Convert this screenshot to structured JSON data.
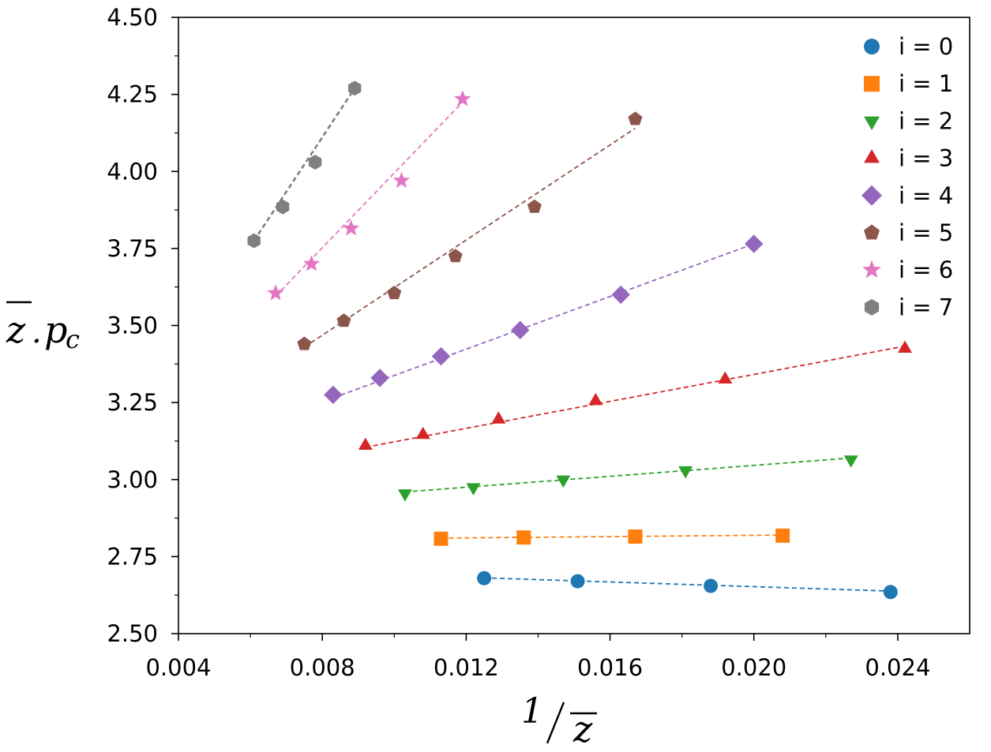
{
  "chart_data": {
    "type": "scatter",
    "title": "",
    "xlabel": "1/z̄",
    "ylabel": "z̄.p_c",
    "xlim": [
      0.004,
      0.026
    ],
    "ylim": [
      2.5,
      4.5
    ],
    "xticks": [
      0.004,
      0.008,
      0.012,
      0.016,
      0.02,
      0.024
    ],
    "xtick_labels": [
      "0.004",
      "0.008",
      "0.012",
      "0.016",
      "0.020",
      "0.024"
    ],
    "yticks": [
      2.5,
      2.75,
      3.0,
      3.25,
      3.5,
      3.75,
      4.0,
      4.25,
      4.5
    ],
    "ytick_labels": [
      "2.50",
      "2.75",
      "3.00",
      "3.25",
      "3.50",
      "3.75",
      "4.00",
      "4.25",
      "4.50"
    ],
    "grid": false,
    "legend_position": "top-right",
    "series": [
      {
        "name": "i = 0",
        "color": "#1f77b4",
        "marker": "circle",
        "x": [
          0.0125,
          0.0151,
          0.0188,
          0.0238
        ],
        "y": [
          2.68,
          2.67,
          2.655,
          2.635
        ],
        "fit": [
          [
            0.0125,
            2.681
          ],
          [
            0.0238,
            2.638
          ]
        ]
      },
      {
        "name": "i = 1",
        "color": "#ff7f0e",
        "marker": "square",
        "x": [
          0.0113,
          0.0136,
          0.0167,
          0.0208
        ],
        "y": [
          2.808,
          2.812,
          2.815,
          2.818
        ],
        "fit": [
          [
            0.0113,
            2.81
          ],
          [
            0.0208,
            2.82
          ]
        ]
      },
      {
        "name": "i = 2",
        "color": "#2ca02c",
        "marker": "triangle-down",
        "x": [
          0.0103,
          0.0122,
          0.0147,
          0.0181,
          0.0227
        ],
        "y": [
          2.955,
          2.975,
          3.0,
          3.03,
          3.065
        ],
        "fit": [
          [
            0.0103,
            2.96
          ],
          [
            0.0227,
            3.07
          ]
        ]
      },
      {
        "name": "i = 3",
        "color": "#d62728",
        "marker": "triangle-up",
        "x": [
          0.0092,
          0.0108,
          0.0129,
          0.0156,
          0.0192,
          0.0242
        ],
        "y": [
          3.11,
          3.145,
          3.195,
          3.255,
          3.325,
          3.425
        ],
        "fit": [
          [
            0.0092,
            3.105
          ],
          [
            0.0242,
            3.433
          ]
        ]
      },
      {
        "name": "i = 4",
        "color": "#9467bd",
        "marker": "diamond",
        "x": [
          0.0083,
          0.0096,
          0.0113,
          0.0135,
          0.0163,
          0.02
        ],
        "y": [
          3.275,
          3.33,
          3.4,
          3.485,
          3.6,
          3.765
        ],
        "fit": [
          [
            0.0083,
            3.265
          ],
          [
            0.02,
            3.765
          ]
        ]
      },
      {
        "name": "i = 5",
        "color": "#8c564b",
        "marker": "pentagon",
        "x": [
          0.0075,
          0.0086,
          0.01,
          0.0117,
          0.0139,
          0.0167
        ],
        "y": [
          3.44,
          3.515,
          3.605,
          3.725,
          3.885,
          4.17
        ],
        "fit": [
          [
            0.0075,
            3.43
          ],
          [
            0.0167,
            4.14
          ]
        ]
      },
      {
        "name": "i = 6",
        "color": "#e377c2",
        "marker": "star",
        "x": [
          0.0067,
          0.0077,
          0.0088,
          0.0102,
          0.0119
        ],
        "y": [
          3.605,
          3.7,
          3.815,
          3.97,
          4.235
        ],
        "fit": [
          [
            0.0067,
            3.595
          ],
          [
            0.0119,
            4.225
          ]
        ]
      },
      {
        "name": "i = 7",
        "color": "#7f7f7f",
        "marker": "hexagon",
        "x": [
          0.0061,
          0.0069,
          0.0078,
          0.0089
        ],
        "y": [
          3.775,
          3.885,
          4.03,
          4.27
        ],
        "fit": [
          [
            0.0061,
            3.775
          ],
          [
            0.0089,
            4.27
          ]
        ]
      }
    ]
  }
}
